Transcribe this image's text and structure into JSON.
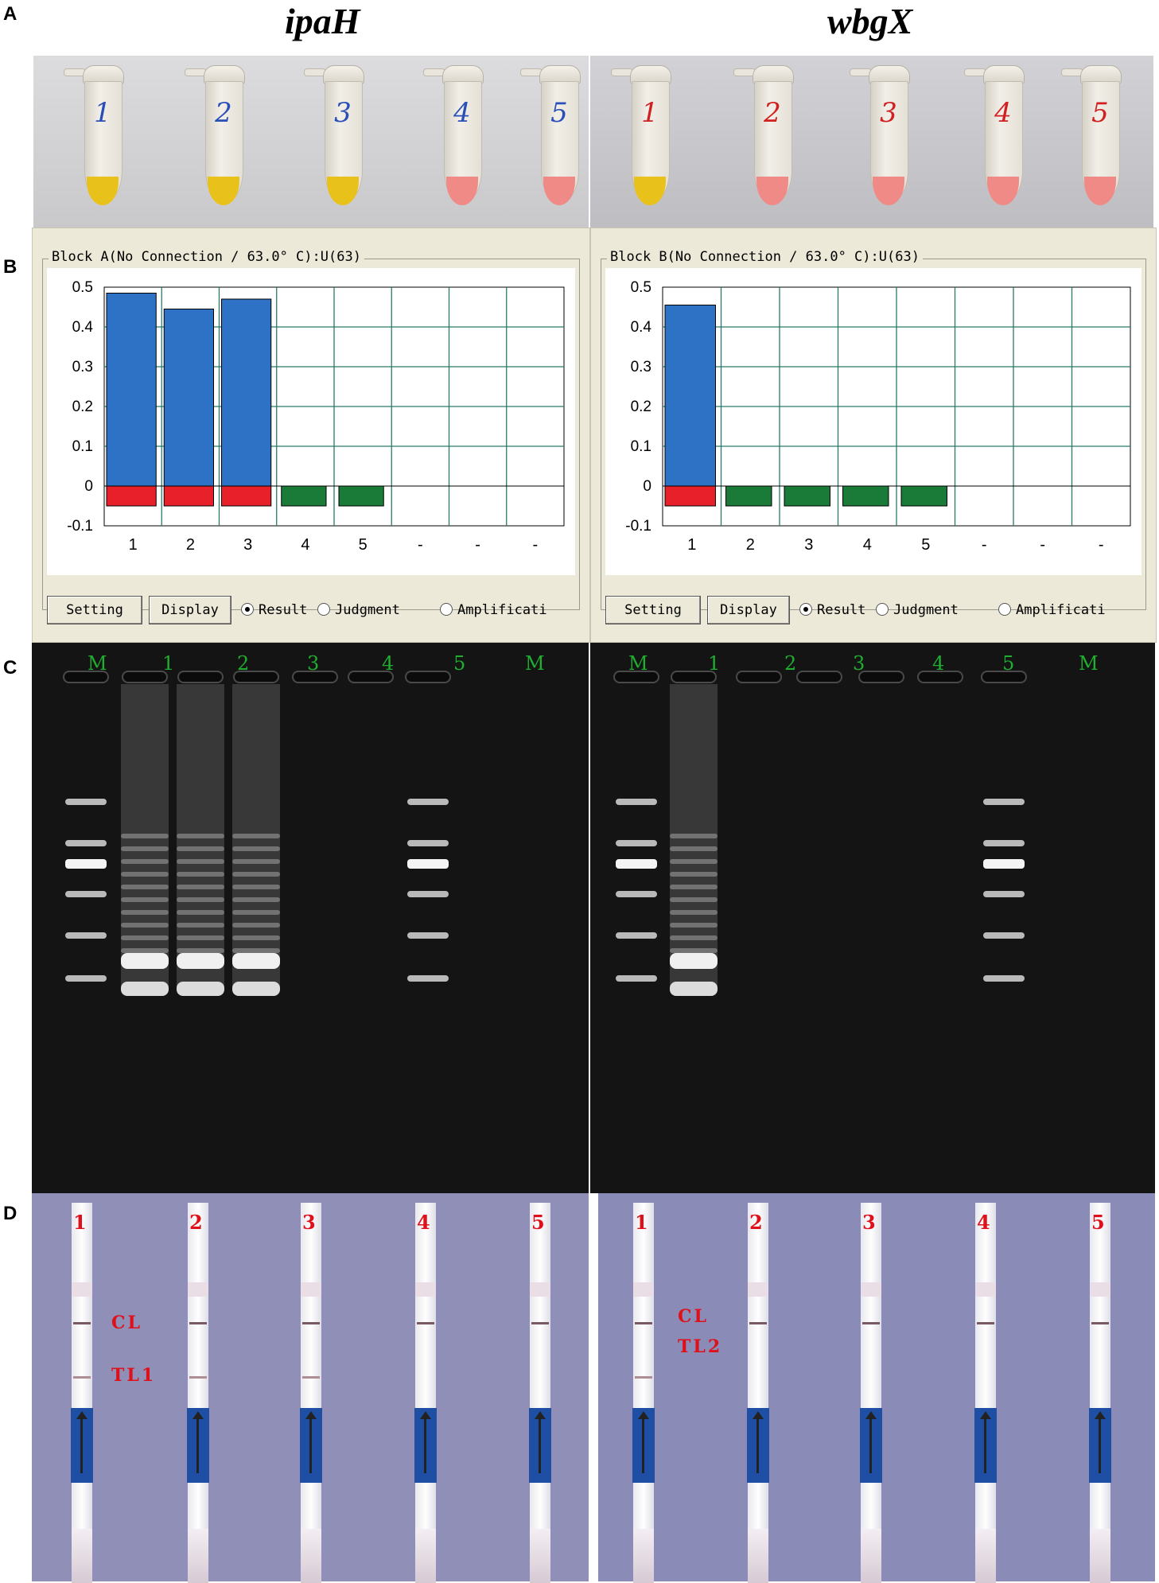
{
  "panels": {
    "a": "A",
    "b": "B",
    "c": "C",
    "d": "D"
  },
  "genes": {
    "left": "ipaH",
    "right": "wbgX"
  },
  "tubes": {
    "left": [
      {
        "label": "1",
        "result_color": "#e8c21a",
        "label_color": "#2a4fb8"
      },
      {
        "label": "2",
        "result_color": "#e8c21a",
        "label_color": "#2a4fb8"
      },
      {
        "label": "3",
        "result_color": "#e8c21a",
        "label_color": "#2a4fb8"
      },
      {
        "label": "4",
        "result_color": "#f08a86",
        "label_color": "#2a4fb8"
      },
      {
        "label": "5",
        "result_color": "#f08a86",
        "label_color": "#2a4fb8"
      }
    ],
    "right": [
      {
        "label": "1",
        "result_color": "#e8c21a",
        "label_color": "#d02020"
      },
      {
        "label": "2",
        "result_color": "#f08a86",
        "label_color": "#d02020"
      },
      {
        "label": "3",
        "result_color": "#f08a86",
        "label_color": "#d02020"
      },
      {
        "label": "4",
        "result_color": "#f08a86",
        "label_color": "#d02020"
      },
      {
        "label": "5",
        "result_color": "#f08a86",
        "label_color": "#d02020"
      }
    ]
  },
  "turbidimeter": {
    "left": {
      "title": "Block A(No Connection / 63.0° C):U(63)",
      "buttons": {
        "setting": "Setting",
        "display": "Display"
      },
      "radios": {
        "result": "Result",
        "judgment": "Judgment",
        "amplification": "Amplificati"
      },
      "selected_radio": "result"
    },
    "right": {
      "title": "Block B(No Connection / 63.0° C):U(63)",
      "buttons": {
        "setting": "Setting",
        "display": "Display"
      },
      "radios": {
        "result": "Result",
        "judgment": "Judgment",
        "amplification": "Amplificati"
      },
      "selected_radio": "result"
    }
  },
  "chart_data": [
    {
      "type": "bar",
      "categories": [
        "1",
        "2",
        "3",
        "4",
        "5",
        "-",
        "-",
        "-"
      ],
      "yticks": [
        "0.5",
        "0.4",
        "0.3",
        "0.2",
        "0.1",
        "0",
        "-0.1"
      ],
      "ylim": [
        -0.1,
        0.5
      ],
      "grid": true,
      "positive_color": "#2e72c5",
      "marker_color_positive": "#e8202a",
      "marker_color_negative": "#1a7a38",
      "values": [
        0.485,
        0.445,
        0.47,
        -0.05,
        -0.05,
        null,
        null,
        null
      ],
      "status": [
        "positive",
        "positive",
        "positive",
        "negative",
        "negative",
        null,
        null,
        null
      ]
    },
    {
      "type": "bar",
      "categories": [
        "1",
        "2",
        "3",
        "4",
        "5",
        "-",
        "-",
        "-"
      ],
      "yticks": [
        "0.5",
        "0.4",
        "0.3",
        "0.2",
        "0.1",
        "0",
        "-0.1"
      ],
      "ylim": [
        -0.1,
        0.5
      ],
      "grid": true,
      "positive_color": "#2e72c5",
      "marker_color_positive": "#e8202a",
      "marker_color_negative": "#1a7a38",
      "values": [
        0.455,
        -0.05,
        -0.05,
        -0.05,
        -0.05,
        null,
        null,
        null
      ],
      "status": [
        "positive",
        "negative",
        "negative",
        "negative",
        "negative",
        null,
        null,
        null
      ]
    }
  ],
  "gel": {
    "left_lanes": [
      "M",
      "1",
      "2",
      "3",
      "4",
      "5",
      "M"
    ],
    "right_lanes": [
      "M",
      "1",
      "2",
      "3",
      "4",
      "5",
      "M"
    ],
    "left_positive": [
      false,
      true,
      true,
      true,
      false,
      false,
      false
    ],
    "right_positive": [
      false,
      true,
      false,
      false,
      false,
      false,
      false
    ]
  },
  "strips": {
    "left": [
      "1",
      "2",
      "3",
      "4",
      "5"
    ],
    "right": [
      "1",
      "2",
      "3",
      "4",
      "5"
    ],
    "left_labels": {
      "cl": "CL",
      "tl": "TL1"
    },
    "right_labels": {
      "cl": "CL",
      "tl": "TL2"
    },
    "left_test_line": [
      true,
      true,
      true,
      false,
      false
    ],
    "right_test_line": [
      true,
      false,
      false,
      false,
      false
    ]
  }
}
